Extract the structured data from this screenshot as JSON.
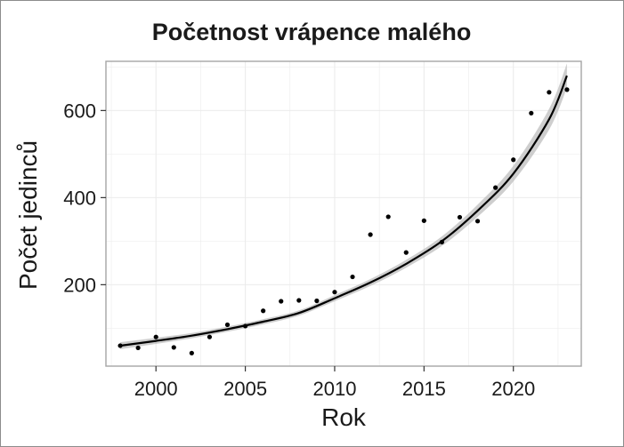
{
  "chart_data": {
    "type": "scatter",
    "title": "Početnost vrápence malého",
    "xlabel": "Rok",
    "ylabel": "Počet jedinců",
    "xlim": [
      1997.2,
      2023.8
    ],
    "ylim": [
      13,
      713
    ],
    "xticks": [
      2000,
      2005,
      2010,
      2015,
      2020
    ],
    "yticks": [
      200,
      400,
      600
    ],
    "grid": true,
    "points": [
      {
        "x": 1998,
        "y": 60
      },
      {
        "x": 1999,
        "y": 55
      },
      {
        "x": 2000,
        "y": 80
      },
      {
        "x": 2001,
        "y": 56
      },
      {
        "x": 2002,
        "y": 43
      },
      {
        "x": 2003,
        "y": 80
      },
      {
        "x": 2004,
        "y": 108
      },
      {
        "x": 2005,
        "y": 105
      },
      {
        "x": 2006,
        "y": 140
      },
      {
        "x": 2007,
        "y": 162
      },
      {
        "x": 2008,
        "y": 164
      },
      {
        "x": 2009,
        "y": 163
      },
      {
        "x": 2010,
        "y": 183
      },
      {
        "x": 2011,
        "y": 218
      },
      {
        "x": 2012,
        "y": 315
      },
      {
        "x": 2013,
        "y": 356
      },
      {
        "x": 2014,
        "y": 274
      },
      {
        "x": 2015,
        "y": 347
      },
      {
        "x": 2016,
        "y": 298
      },
      {
        "x": 2017,
        "y": 355
      },
      {
        "x": 2018,
        "y": 346
      },
      {
        "x": 2019,
        "y": 423
      },
      {
        "x": 2020,
        "y": 487
      },
      {
        "x": 2021,
        "y": 594
      },
      {
        "x": 2022,
        "y": 642
      },
      {
        "x": 2023,
        "y": 648
      }
    ],
    "trend": {
      "type": "exponential",
      "x": [
        1998,
        2000,
        2002,
        2004,
        2006,
        2008,
        2010,
        2012,
        2014,
        2016,
        2018,
        2020,
        2022,
        2023
      ],
      "y": [
        60,
        71,
        83,
        98,
        115,
        135,
        169,
        205,
        248,
        300,
        370,
        455,
        580,
        680
      ],
      "band_halfwidth": [
        8,
        7,
        6,
        6,
        6,
        6,
        7,
        8,
        9,
        11,
        14,
        18,
        24,
        28
      ]
    },
    "colors": {
      "points": "#000000",
      "trend": "#000000",
      "band": "#bdbdbd",
      "grid": "#ebebeb",
      "panel_border": "#a6a6a6"
    }
  }
}
